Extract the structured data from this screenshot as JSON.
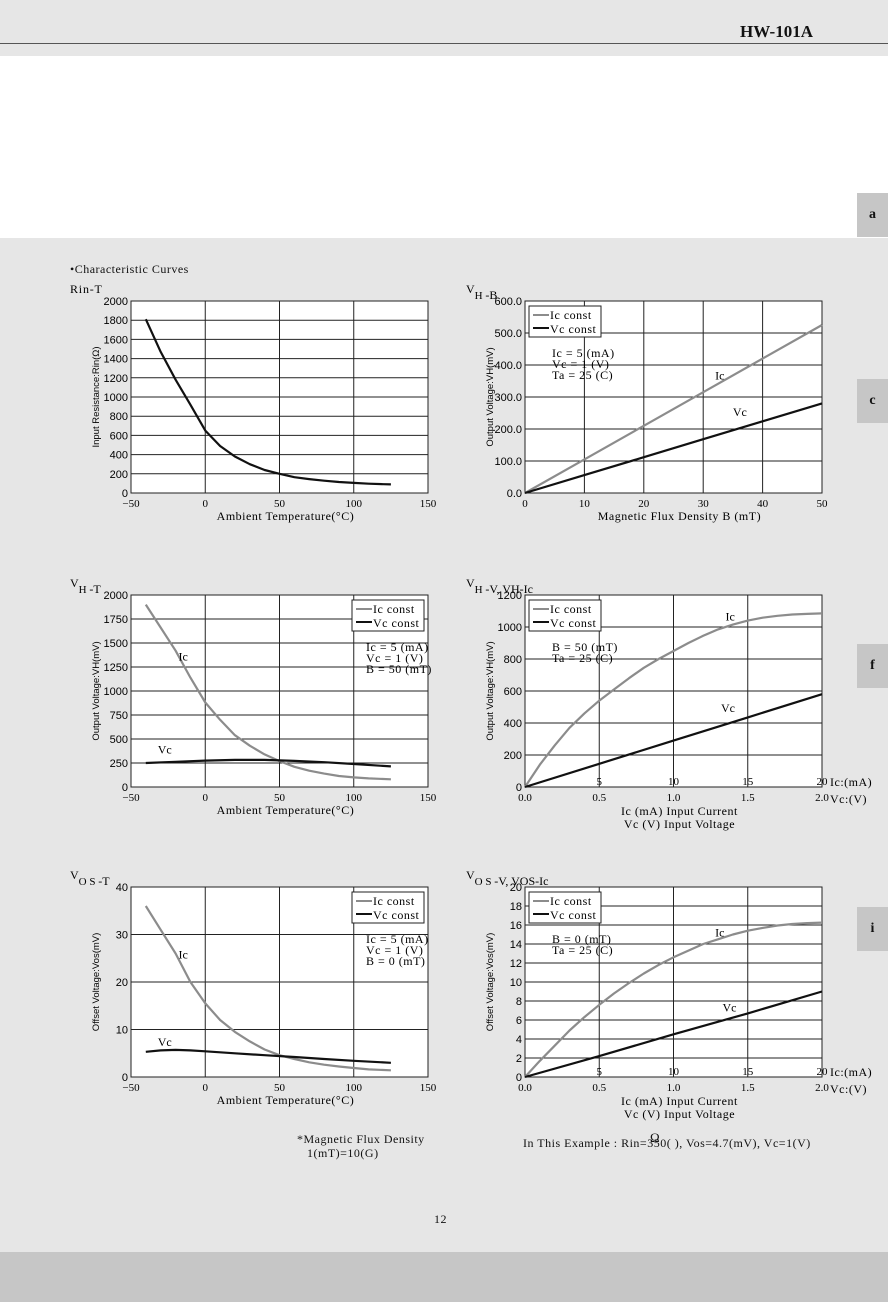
{
  "doc_title": "HW-101A",
  "section_title": "•Characteristic Curves",
  "side_tabs": [
    "a",
    "c",
    "f",
    "i"
  ],
  "footnote": {
    "line1": "*Magnetic Flux Density",
    "line2": "1(mT)=10(G)"
  },
  "example": "In This Example : Rin=350( ), Vos=4.7(mV), Vc=1(V)",
  "omega_glyph": "Ω",
  "page_number": "12",
  "colors": {
    "ic": "#8c8c8c",
    "vc": "#111111",
    "grid": "#222222"
  },
  "chart_data": [
    {
      "id": "rin-t",
      "type": "line",
      "title": "Rin-T",
      "xlabel": "Ambient Temperature(°C)",
      "ylabel": "Input Resistance:Rin(Ω)",
      "xlim": [
        -50,
        150
      ],
      "ylim": [
        0,
        2000
      ],
      "xticks": [
        "−50",
        "0",
        "50",
        "100",
        "150"
      ],
      "yticks": [
        "0",
        "200",
        "400",
        "600",
        "800",
        "1000",
        "1200",
        "1400",
        "1600",
        "1800",
        "2000"
      ],
      "series": [
        {
          "color": "vc",
          "x": [
            -40,
            -30,
            -20,
            -10,
            0,
            10,
            20,
            30,
            40,
            50,
            60,
            70,
            80,
            90,
            100,
            110,
            120,
            125
          ],
          "y": [
            1810,
            1470,
            1180,
            920,
            650,
            490,
            380,
            300,
            240,
            200,
            165,
            145,
            128,
            115,
            105,
            97,
            92,
            90
          ]
        }
      ]
    },
    {
      "id": "vh-b",
      "type": "line",
      "title_main": "V",
      "title_sub": "H",
      "title_rest": " -B",
      "xlabel": "Magnetic Flux Density B (mT)",
      "ylabel": "Output Voltage:VH(mV)",
      "xlim": [
        0,
        50
      ],
      "ylim": [
        0,
        600
      ],
      "xticks": [
        "0",
        "10",
        "20",
        "30",
        "40",
        "50"
      ],
      "yticks": [
        "0.0",
        "100.0",
        "200.0",
        "300.0",
        "400.0",
        "500.0",
        "600.0"
      ],
      "legend": [
        "Ic const",
        "Vc const"
      ],
      "conditions": [
        "Ic = 5 (mA)",
        "Vc = 1 (V)",
        "Ta = 25 (C)"
      ],
      "series": [
        {
          "name": "Ic",
          "color": "ic",
          "x": [
            0,
            10,
            20,
            30,
            40,
            50
          ],
          "y": [
            0,
            105,
            210,
            315,
            420,
            525
          ]
        },
        {
          "name": "Vc",
          "color": "vc",
          "x": [
            0,
            10,
            20,
            30,
            40,
            50
          ],
          "y": [
            0,
            56,
            112,
            168,
            224,
            280
          ]
        }
      ],
      "curve_labels": [
        {
          "text": "Ic",
          "x": 32,
          "y": 355
        },
        {
          "text": "Vc",
          "x": 35,
          "y": 240
        }
      ]
    },
    {
      "id": "vh-t",
      "type": "line",
      "title_main": "V",
      "title_sub": "H",
      "title_rest": " -T",
      "xlabel": "Ambient Temperature(°C)",
      "ylabel": "Output Voltage:VH(mV)",
      "xlim": [
        -50,
        150
      ],
      "ylim": [
        0,
        2000
      ],
      "xticks": [
        "−50",
        "0",
        "50",
        "100",
        "150"
      ],
      "yticks": [
        "0",
        "250",
        "500",
        "750",
        "1000",
        "1250",
        "1500",
        "1750",
        "2000"
      ],
      "legend": [
        "Ic const",
        "Vc const"
      ],
      "conditions": [
        "Ic = 5 (mA)",
        "Vc = 1 (V)",
        "B = 50 (mT)"
      ],
      "series": [
        {
          "name": "Ic",
          "color": "ic",
          "x": [
            -40,
            -30,
            -20,
            -10,
            0,
            10,
            20,
            30,
            40,
            50,
            60,
            70,
            80,
            90,
            100,
            110,
            125
          ],
          "y": [
            1900,
            1660,
            1420,
            1140,
            880,
            700,
            540,
            430,
            340,
            270,
            210,
            170,
            140,
            115,
            100,
            90,
            80
          ]
        },
        {
          "name": "Vc",
          "color": "vc",
          "x": [
            -40,
            -20,
            0,
            20,
            40,
            60,
            80,
            100,
            125
          ],
          "y": [
            250,
            262,
            275,
            282,
            282,
            272,
            258,
            240,
            215
          ]
        }
      ],
      "curve_labels": [
        {
          "text": "Ic",
          "x": -18,
          "y": 1320
        },
        {
          "text": "Vc",
          "x": -32,
          "y": 350
        }
      ]
    },
    {
      "id": "vh-v-ic",
      "type": "line",
      "title_main": "V",
      "title_sub": "H",
      "title_rest": " -V, VH-Ic",
      "xlabel": "Ic (mA) Input Current",
      "xlabel2": "Vc (V) Input Voltage",
      "ylabel": "Output Voltage:VH(mV)",
      "xlim": [
        0,
        2
      ],
      "ylim": [
        0,
        1200
      ],
      "xticks": [
        "0.0",
        "0.5",
        "1.0",
        "1.5",
        "2.0"
      ],
      "xticks_top": [
        "5",
        "10",
        "15",
        "20"
      ],
      "yticks": [
        "0",
        "200",
        "400",
        "600",
        "800",
        "1000",
        "1200"
      ],
      "x_unit_top": "Ic:(mA)",
      "x_unit_bottom": "Vc:(V)",
      "legend": [
        "Ic const",
        "Vc const"
      ],
      "conditions": [
        "B = 50 (mT)",
        "Ta = 25 (C)"
      ],
      "series": [
        {
          "name": "Ic",
          "color": "ic",
          "x": [
            0,
            0.1,
            0.2,
            0.3,
            0.4,
            0.5,
            0.6,
            0.7,
            0.8,
            0.9,
            1.0,
            1.1,
            1.2,
            1.3,
            1.4,
            1.5,
            1.6,
            1.7,
            1.8,
            1.9,
            2.0
          ],
          "y": [
            0,
            140,
            260,
            370,
            460,
            540,
            610,
            680,
            745,
            800,
            850,
            900,
            945,
            985,
            1015,
            1040,
            1058,
            1070,
            1078,
            1082,
            1085
          ]
        },
        {
          "name": "Vc",
          "color": "vc",
          "x": [
            0,
            0.5,
            1.0,
            1.5,
            2.0
          ],
          "y": [
            0,
            145,
            290,
            435,
            580
          ]
        }
      ],
      "curve_labels": [
        {
          "text": "Ic",
          "x": 1.35,
          "y": 1040
        },
        {
          "text": "Vc",
          "x": 1.32,
          "y": 470
        }
      ]
    },
    {
      "id": "vos-t",
      "type": "line",
      "title_main": "V",
      "title_sub": "O S",
      "title_rest": " -T",
      "xlabel": "Ambient Temperature(°C)",
      "ylabel": "Offset Voltage:Vos(mV)",
      "xlim": [
        -50,
        150
      ],
      "ylim": [
        0,
        40
      ],
      "xticks": [
        "−50",
        "0",
        "50",
        "100",
        "150"
      ],
      "yticks": [
        "0",
        "10",
        "20",
        "30",
        "40"
      ],
      "legend": [
        "Ic const",
        "Vc const"
      ],
      "conditions": [
        "Ic = 5 (mA)",
        "Vc = 1 (V)",
        "B = 0 (mT)"
      ],
      "series": [
        {
          "name": "Ic",
          "color": "ic",
          "x": [
            -40,
            -30,
            -20,
            -10,
            0,
            10,
            20,
            30,
            40,
            50,
            60,
            70,
            80,
            90,
            100,
            110,
            125
          ],
          "y": [
            36,
            31,
            26,
            20,
            15.5,
            12,
            9.5,
            7.5,
            5.8,
            4.6,
            3.8,
            3.1,
            2.6,
            2.2,
            1.9,
            1.6,
            1.4
          ]
        },
        {
          "name": "Vc",
          "color": "vc",
          "x": [
            -40,
            -30,
            -20,
            -10,
            0,
            20,
            40,
            60,
            80,
            100,
            125
          ],
          "y": [
            5.3,
            5.6,
            5.7,
            5.6,
            5.4,
            5.0,
            4.6,
            4.2,
            3.8,
            3.4,
            3.0
          ]
        }
      ],
      "curve_labels": [
        {
          "text": "Ic",
          "x": -18,
          "y": 25
        },
        {
          "text": "Vc",
          "x": -32,
          "y": 6.5
        }
      ]
    },
    {
      "id": "vos-v-ic",
      "type": "line",
      "title_main": "V",
      "title_sub": "O S",
      "title_rest": " -V, VOS-Ic",
      "xlabel": "Ic (mA) Input Current",
      "xlabel2": "Vc (V) Input Voltage",
      "ylabel": "Offset Voltage:Vos(mV)",
      "xlim": [
        0,
        2
      ],
      "ylim": [
        0,
        20
      ],
      "xticks": [
        "0.0",
        "0.5",
        "1.0",
        "1.5",
        "2.0"
      ],
      "xticks_top": [
        "5",
        "10",
        "15",
        "20"
      ],
      "yticks": [
        "0",
        "2",
        "4",
        "6",
        "8",
        "10",
        "12",
        "14",
        "16",
        "18",
        "20"
      ],
      "x_unit_top": "Ic:(mA)",
      "x_unit_bottom": "Vc:(V)",
      "legend": [
        "Ic const",
        "Vc const"
      ],
      "conditions": [
        "B = 0 (mT)",
        "Ta = 25 (C)"
      ],
      "series": [
        {
          "name": "Ic",
          "color": "ic",
          "x": [
            0,
            0.1,
            0.2,
            0.3,
            0.4,
            0.5,
            0.6,
            0.7,
            0.8,
            0.9,
            1.0,
            1.1,
            1.2,
            1.3,
            1.4,
            1.5,
            1.6,
            1.7,
            1.8,
            1.9,
            2.0
          ],
          "y": [
            0,
            1.7,
            3.3,
            4.9,
            6.3,
            7.6,
            8.8,
            9.9,
            10.9,
            11.8,
            12.6,
            13.3,
            14.0,
            14.5,
            15.0,
            15.4,
            15.7,
            15.95,
            16.1,
            16.2,
            16.25
          ]
        },
        {
          "name": "Vc",
          "color": "vc",
          "x": [
            0,
            0.5,
            1.0,
            1.5,
            2.0
          ],
          "y": [
            0,
            2.2,
            4.5,
            6.7,
            9.0
          ]
        }
      ],
      "curve_labels": [
        {
          "text": "Ic",
          "x": 1.28,
          "y": 14.8
        },
        {
          "text": "Vc",
          "x": 1.33,
          "y": 6.9
        }
      ]
    }
  ]
}
